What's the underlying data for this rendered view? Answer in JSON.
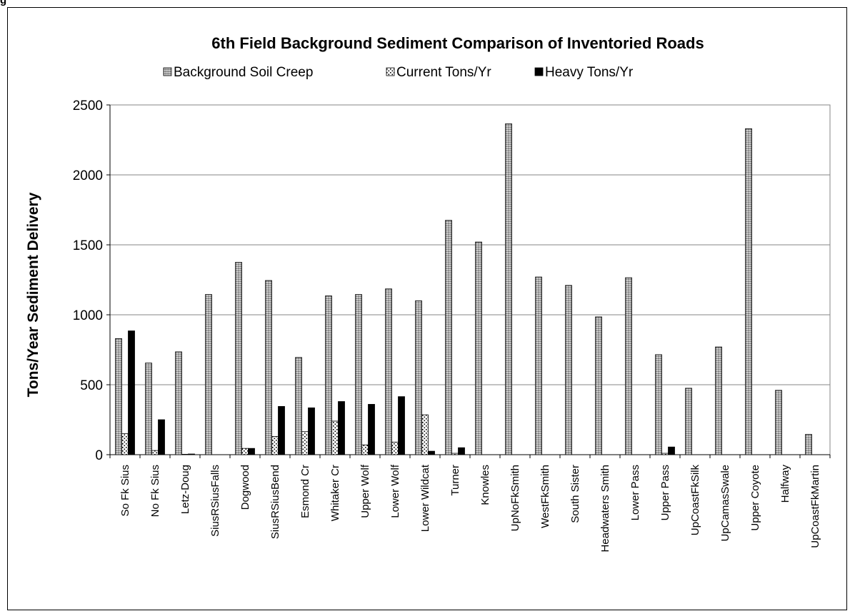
{
  "page": {
    "corner_label": "g"
  },
  "chart_data": {
    "type": "bar",
    "title": "6th Field Background Sediment Comparison of Inventoried Roads",
    "xlabel": "",
    "ylabel": "Tons/Year Sediment Delivery",
    "ylim": [
      0,
      2500
    ],
    "yticks": [
      "0",
      "500",
      "1000",
      "1500",
      "2000",
      "2500"
    ],
    "grid": true,
    "legend_position": "top",
    "categories": [
      "So Fk Sius",
      "No Fk Sius",
      "Letz-Doug",
      "SiusRSiusFalls",
      "Dogwood",
      "SiusRSiusBend",
      "Esmond Cr",
      "Whitaker Cr",
      "Upper Wolf",
      "Lower Wolf",
      "Lower Wildcat",
      "Turner",
      "Knowles",
      "UpNoFkSmith",
      "WestFkSmith",
      "South Sister",
      "Headwaters Smith",
      "Lower Pass",
      "Upper Pass",
      "UpCoastFkSilk",
      "UpCamasSwale",
      "Upper Coyote",
      "Halfway",
      "UpCoastFkMartin"
    ],
    "series": [
      {
        "name": "Background Soil Creep",
        "pattern": "dense-gray",
        "values": [
          830,
          655,
          735,
          1145,
          1375,
          1245,
          695,
          1135,
          1145,
          1185,
          1100,
          1675,
          1520,
          2365,
          1270,
          1210,
          985,
          1265,
          715,
          475,
          770,
          2330,
          460,
          145
        ]
      },
      {
        "name": "Current Tons/Yr",
        "pattern": "dotted-white",
        "values": [
          150,
          30,
          3,
          0,
          45,
          130,
          165,
          240,
          70,
          90,
          285,
          10,
          0,
          0,
          0,
          0,
          0,
          0,
          10,
          0,
          0,
          0,
          0,
          0
        ]
      },
      {
        "name": "Heavy Tons/Yr",
        "pattern": "solid-black",
        "values": [
          885,
          250,
          5,
          0,
          45,
          345,
          335,
          380,
          360,
          415,
          25,
          50,
          0,
          0,
          0,
          0,
          0,
          0,
          55,
          0,
          0,
          0,
          0,
          0
        ]
      }
    ]
  }
}
